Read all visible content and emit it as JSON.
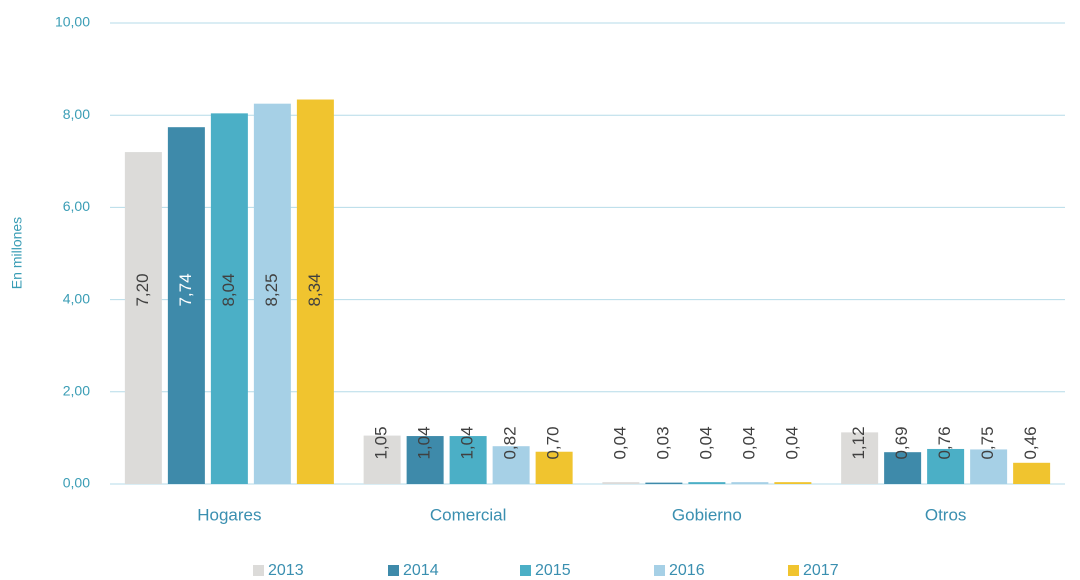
{
  "chart_data": {
    "type": "bar",
    "y_label": "En millones",
    "categories": [
      "Hogares",
      "Comercial",
      "Gobierno",
      "Otros"
    ],
    "series": [
      {
        "name": "2013",
        "color": "#dcdbd9",
        "values": [
          7.2,
          1.05,
          0.04,
          1.12
        ],
        "value_labels": [
          "7,20",
          "1,05",
          "0,04",
          "1,12"
        ]
      },
      {
        "name": "2014",
        "color": "#3e8aaa",
        "values": [
          7.74,
          1.04,
          0.03,
          0.69
        ],
        "value_labels": [
          "7,74",
          "1,04",
          "0,03",
          "0,69"
        ]
      },
      {
        "name": "2015",
        "color": "#4bafc6",
        "values": [
          8.04,
          1.04,
          0.04,
          0.76
        ],
        "value_labels": [
          "8,04",
          "1,04",
          "0,04",
          "0,76"
        ]
      },
      {
        "name": "2016",
        "color": "#a6d0e6",
        "values": [
          8.25,
          0.82,
          0.04,
          0.75
        ],
        "value_labels": [
          "8,25",
          "0,82",
          "0,04",
          "0,75"
        ]
      },
      {
        "name": "2017",
        "color": "#f0c42f",
        "values": [
          8.34,
          0.7,
          0.04,
          0.46
        ],
        "value_labels": [
          "8,34",
          "0,70",
          "0,04",
          "0,46"
        ]
      }
    ],
    "ylim": [
      0,
      10
    ],
    "yticks": [
      {
        "value": 0,
        "label": "0,00"
      },
      {
        "value": 2,
        "label": "2,00"
      },
      {
        "value": 4,
        "label": "4,00"
      },
      {
        "value": 6,
        "label": "6,00"
      },
      {
        "value": 8,
        "label": "8,00"
      },
      {
        "value": 10,
        "label": "10,00"
      }
    ],
    "grid": true,
    "legend": "bottom"
  }
}
